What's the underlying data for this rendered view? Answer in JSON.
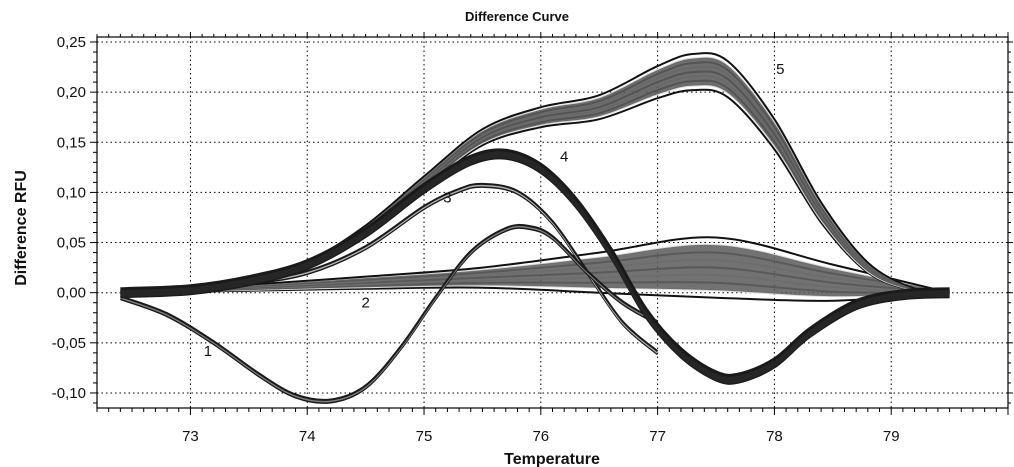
{
  "chart_data": {
    "type": "line",
    "title": "Difference Curve",
    "xlabel": "Temperature",
    "ylabel": "Difference RFU",
    "xlim": [
      72.2,
      80.0
    ],
    "ylim": [
      -0.115,
      0.255
    ],
    "x_ticks": [
      73,
      74,
      75,
      76,
      77,
      78,
      79
    ],
    "x_tick_labels": [
      "73",
      "74",
      "75",
      "76",
      "77",
      "78",
      "79"
    ],
    "y_ticks": [
      0.25,
      0.2,
      0.15,
      0.1,
      0.05,
      0.0,
      -0.05,
      -0.1
    ],
    "y_tick_labels": [
      "0,25",
      "0,20",
      "0,15",
      "0,10",
      "0,05",
      "0,00",
      "-0,05",
      "-0,10"
    ],
    "grid": true,
    "annotations": [
      {
        "text": "1",
        "x": 73.15,
        "y": -0.063
      },
      {
        "text": "2",
        "x": 74.5,
        "y": -0.015
      },
      {
        "text": "3",
        "x": 75.2,
        "y": 0.09
      },
      {
        "text": "4",
        "x": 76.2,
        "y": 0.131
      },
      {
        "text": "5",
        "x": 78.05,
        "y": 0.218
      }
    ],
    "series": [
      {
        "label": "1",
        "color": "#7f7f7f",
        "x": [
          72.4,
          72.8,
          73.2,
          73.6,
          73.9,
          74.2,
          74.5,
          74.8,
          75.1,
          75.4,
          75.7,
          75.9,
          76.1,
          76.4,
          76.7,
          77.0
        ],
        "y": [
          -0.005,
          -0.022,
          -0.05,
          -0.083,
          -0.103,
          -0.108,
          -0.094,
          -0.055,
          -0.005,
          0.04,
          0.063,
          0.065,
          0.055,
          0.02,
          -0.01,
          -0.03
        ]
      },
      {
        "label": "2",
        "color": "#595959",
        "x": [
          72.4,
          73.5,
          74.5,
          75.5,
          76.5,
          77.5,
          78.5,
          79.5
        ],
        "y": [
          0.0,
          0.005,
          0.01,
          0.015,
          0.02,
          0.025,
          0.01,
          0.0
        ],
        "spread": [
          0.0,
          0.003,
          0.006,
          0.01,
          0.02,
          0.03,
          0.018,
          0.0
        ]
      },
      {
        "label": "3",
        "color": "#b3b3b3",
        "x": [
          72.4,
          73.0,
          73.5,
          74.0,
          74.5,
          75.0,
          75.3,
          75.5,
          75.8,
          76.1,
          76.4,
          76.7,
          77.0
        ],
        "y": [
          0.0,
          0.003,
          0.01,
          0.02,
          0.045,
          0.085,
          0.102,
          0.107,
          0.1,
          0.07,
          0.02,
          -0.03,
          -0.06
        ]
      },
      {
        "label": "4",
        "color": "#262626",
        "x": [
          72.4,
          73.0,
          73.5,
          74.0,
          74.5,
          75.0,
          75.4,
          75.7,
          76.0,
          76.3,
          76.6,
          76.9,
          77.2,
          77.5,
          77.7,
          78.0,
          78.3,
          78.7,
          79.1,
          79.5
        ],
        "y": [
          0.0,
          0.003,
          0.012,
          0.028,
          0.06,
          0.104,
          0.132,
          0.138,
          0.124,
          0.09,
          0.04,
          -0.02,
          -0.06,
          -0.083,
          -0.085,
          -0.07,
          -0.04,
          -0.012,
          -0.002,
          0.0
        ]
      },
      {
        "label": "5",
        "color": "#555555",
        "x": [
          72.4,
          73.0,
          73.5,
          74.0,
          74.5,
          75.0,
          75.5,
          76.0,
          76.5,
          77.0,
          77.3,
          77.6,
          78.0,
          78.4,
          78.8,
          79.2,
          79.5
        ],
        "y": [
          0.0,
          0.003,
          0.012,
          0.028,
          0.062,
          0.11,
          0.155,
          0.175,
          0.185,
          0.21,
          0.22,
          0.213,
          0.158,
          0.08,
          0.025,
          0.003,
          0.0
        ],
        "spread": [
          0.0,
          0.001,
          0.002,
          0.003,
          0.005,
          0.006,
          0.008,
          0.01,
          0.012,
          0.016,
          0.018,
          0.018,
          0.015,
          0.01,
          0.005,
          0.001,
          0.0
        ]
      }
    ]
  }
}
